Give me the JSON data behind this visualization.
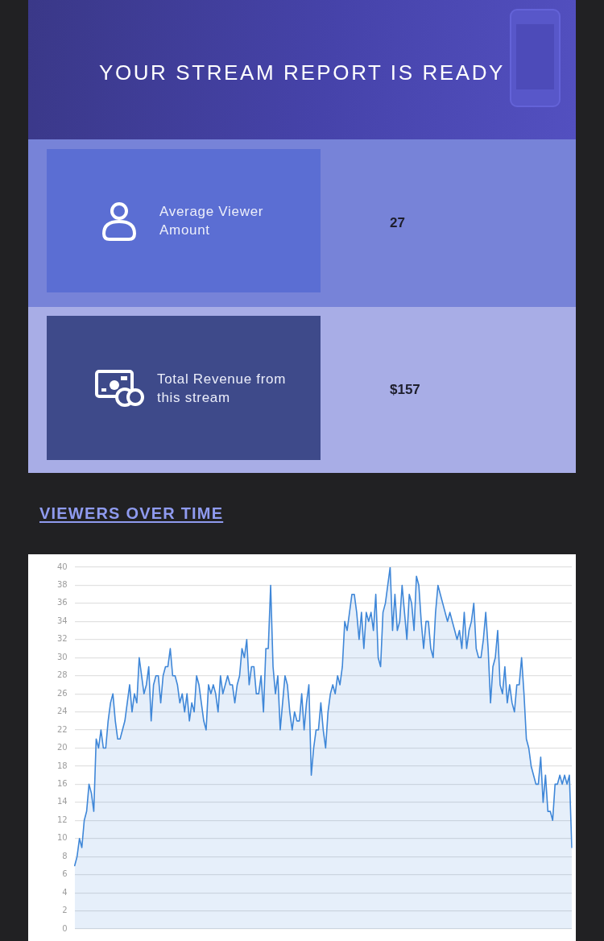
{
  "chart_data": [
    {
      "type": "other",
      "title": "YOUR STREAM REPORT IS READY",
      "annotations": [
        "Average Viewer Amount",
        "27",
        "Total Revenue from this stream",
        "$157"
      ]
    },
    {
      "type": "area",
      "title": "VIEWERS OVER TIME",
      "color": "#3f87d8",
      "ylim": [
        0,
        40
      ],
      "yticks": [
        0,
        2,
        4,
        6,
        8,
        10,
        12,
        14,
        16,
        18,
        20,
        22,
        24,
        26,
        28,
        30,
        32,
        34,
        36,
        38,
        40
      ],
      "grid": "y",
      "tick_labels": "y",
      "categories": [
        null,
        null,
        null,
        null,
        null,
        null,
        null,
        null,
        null,
        null,
        null,
        null,
        null,
        null,
        null,
        null,
        null,
        null,
        null,
        null,
        null,
        null,
        null,
        null,
        null,
        null,
        null,
        null,
        null,
        null,
        null,
        null,
        null,
        null,
        null,
        null,
        null,
        null,
        null,
        null,
        null,
        null,
        null,
        null,
        null,
        null,
        null,
        null,
        null,
        null,
        null,
        null,
        null,
        null,
        null,
        null,
        null,
        null,
        null,
        null,
        null,
        null,
        null,
        null,
        null,
        null,
        null,
        null,
        null,
        null,
        null,
        null,
        null,
        null,
        null,
        null,
        null,
        null,
        null,
        null,
        null,
        null,
        null,
        null,
        null,
        null,
        null,
        null,
        null,
        null,
        null,
        null,
        null,
        null,
        null,
        null,
        null,
        null,
        null,
        null,
        null,
        null,
        null,
        null,
        null,
        null,
        null,
        null,
        null,
        null,
        null,
        null,
        null,
        null,
        null,
        null,
        null,
        null,
        null,
        null,
        null,
        null,
        null,
        null,
        null,
        null,
        null,
        null,
        null,
        null,
        null,
        null,
        null,
        null,
        null,
        null,
        null,
        null,
        null,
        null,
        null,
        null,
        null,
        null,
        null,
        null,
        null,
        null,
        null,
        null,
        null,
        null,
        null,
        null,
        null,
        null,
        null,
        null,
        null,
        null,
        null,
        null,
        null,
        null,
        null,
        null,
        null,
        null,
        null,
        null,
        null,
        null,
        null,
        null,
        null,
        null,
        null,
        null,
        null,
        null,
        null,
        null,
        null,
        null,
        null,
        null,
        null,
        null,
        null,
        null,
        null,
        null,
        null,
        null,
        null,
        null,
        null,
        null,
        null,
        null,
        null,
        null,
        null,
        null,
        null,
        null,
        null,
        null,
        null
      ],
      "values": [
        7,
        8,
        10,
        9,
        12,
        13,
        16,
        15,
        13,
        21,
        20,
        22,
        20,
        20,
        23,
        25,
        26,
        23,
        21,
        21,
        22,
        23,
        25,
        27,
        24,
        26,
        25,
        30,
        28,
        26,
        27,
        29,
        23,
        27,
        28,
        28,
        25,
        28,
        29,
        29,
        31,
        28,
        28,
        27,
        25,
        26,
        24,
        26,
        23,
        25,
        24,
        28,
        27,
        25,
        23,
        22,
        27,
        26,
        27,
        26,
        24,
        28,
        26,
        27,
        28,
        27,
        27,
        25,
        27,
        28,
        31,
        30,
        32,
        27,
        29,
        29,
        26,
        26,
        28,
        24,
        31,
        31,
        38,
        29,
        26,
        28,
        22,
        25,
        28,
        27,
        24,
        22,
        24,
        23,
        23,
        26,
        22,
        25,
        27,
        17,
        20,
        22,
        22,
        25,
        22,
        20,
        24,
        26,
        27,
        26,
        28,
        27,
        29,
        34,
        33,
        35,
        37,
        37,
        35,
        32,
        35,
        31,
        35,
        34,
        35,
        33,
        37,
        30,
        29,
        35,
        36,
        38,
        40,
        33,
        37,
        33,
        34,
        38,
        35,
        32,
        37,
        36,
        33,
        39,
        38,
        34,
        31,
        34,
        34,
        31,
        30,
        35,
        38,
        37,
        36,
        35,
        34,
        35,
        34,
        33,
        32,
        33,
        31,
        35,
        31,
        33,
        34,
        36,
        31,
        30,
        30,
        32,
        35,
        31,
        25,
        29,
        30,
        33,
        27,
        26,
        29,
        25,
        27,
        25,
        24,
        27,
        27,
        30,
        26,
        21,
        20,
        18,
        17,
        16,
        16,
        19,
        14,
        17,
        13,
        13,
        12,
        16,
        16,
        17,
        16,
        17,
        16,
        17,
        9
      ]
    }
  ]
}
